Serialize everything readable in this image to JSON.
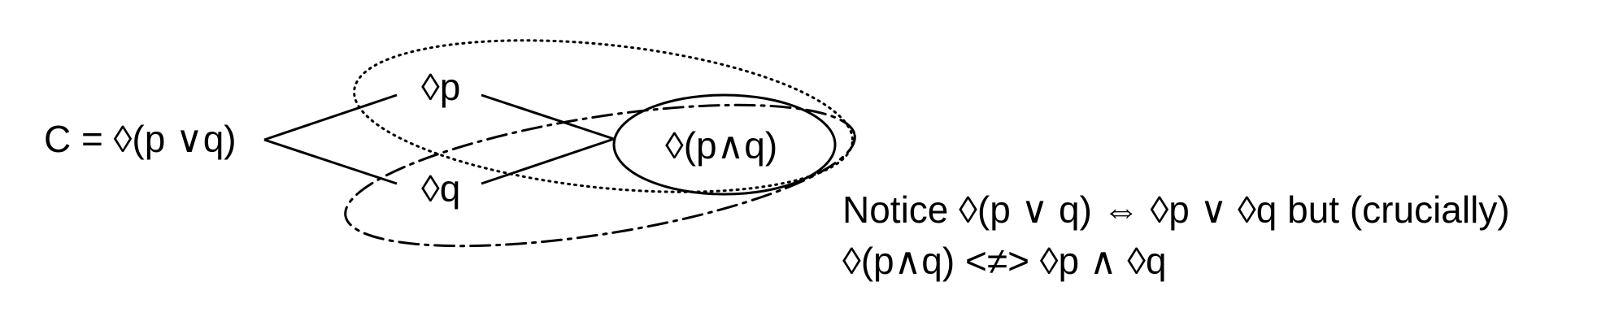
{
  "diagram": {
    "root_label": "C = ◊(p ∨q)",
    "node_diamond_p": "◊p",
    "node_diamond_q": "◊q",
    "node_diamond_p_and_q": "◊(p∧q)"
  },
  "notes": {
    "line1": "Notice ◊(p ∨ q) ⇔ ◊p ∨ ◊q but (crucially)",
    "line2": "◊(p∧q) <≠> ◊p ∧ ◊q"
  },
  "colors": {
    "ink": "#000000",
    "background": "#ffffff"
  }
}
